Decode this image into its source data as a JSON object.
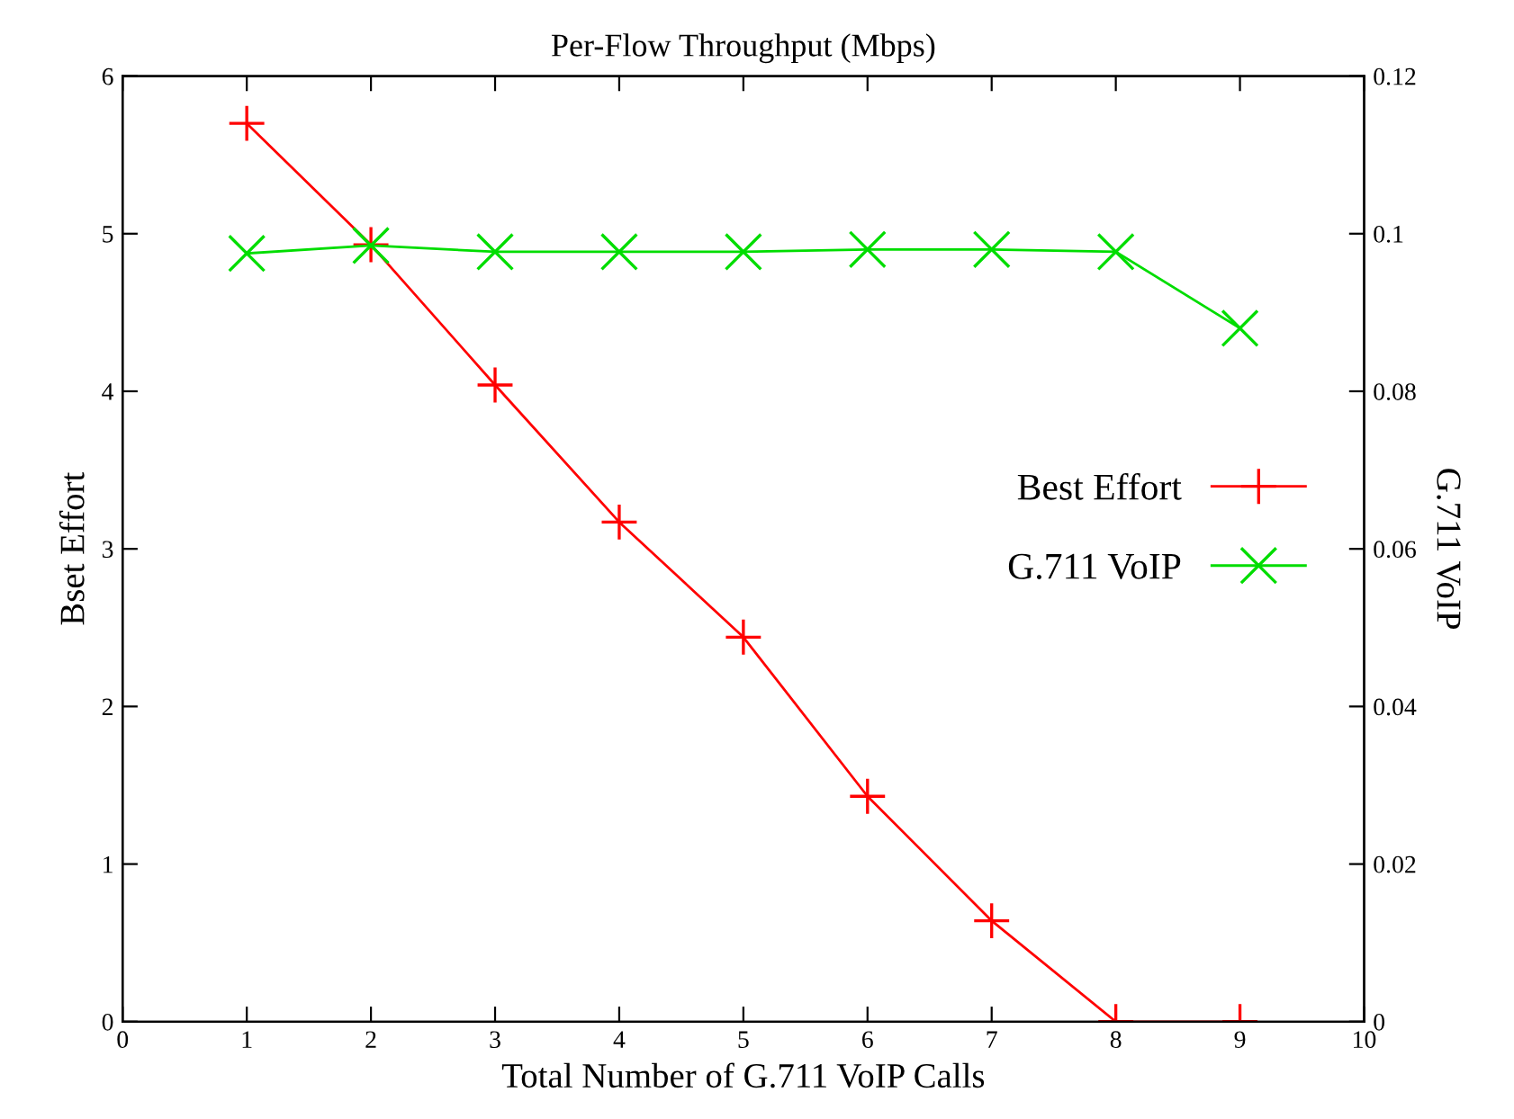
{
  "chart_data": {
    "type": "line",
    "title": "Per-Flow Throughput (Mbps)",
    "xlabel": "Total Number of G.711 VoIP Calls",
    "ylabel": "Bset Effort",
    "y2label": "G.711 VoIP",
    "x": [
      1,
      2,
      3,
      4,
      5,
      6,
      7,
      8,
      9
    ],
    "series": [
      {
        "name": "Best Effort",
        "color": "#ff0000",
        "marker": "plus",
        "values": [
          5.7,
          4.93,
          4.04,
          3.17,
          2.44,
          1.43,
          0.64,
          0,
          0
        ]
      },
      {
        "name": "G.711 VoIP",
        "color": "#00dd00",
        "marker": "cross",
        "axis": "y2",
        "values": [
          0.0975,
          0.0985,
          0.0977,
          0.0977,
          0.0977,
          0.098,
          0.098,
          0.0977,
          0.088
        ]
      }
    ],
    "xlim": [
      0,
      10
    ],
    "xticks": [
      0,
      1,
      2,
      3,
      4,
      5,
      6,
      7,
      8,
      9,
      10
    ],
    "ylim": [
      0,
      6
    ],
    "yticks": [
      0,
      1,
      2,
      3,
      4,
      5,
      6
    ],
    "y2lim": [
      0,
      0.12
    ],
    "y2ticks": [
      0,
      0.02,
      0.04,
      0.06,
      0.08,
      0.1,
      0.12
    ],
    "grid": false,
    "legend": "right",
    "line_style": "solid"
  }
}
